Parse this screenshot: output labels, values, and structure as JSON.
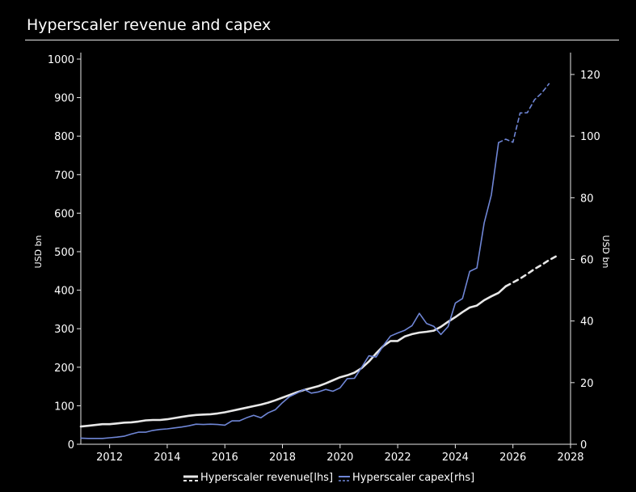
{
  "page": {
    "title": "Hyperscaler revenue and capex"
  },
  "chart_data": {
    "type": "line",
    "title": "Hyperscaler revenue and capex",
    "xlim": [
      2011,
      2028
    ],
    "x_ticks": [
      "2012",
      "2014",
      "2016",
      "2018",
      "2020",
      "2022",
      "2024",
      "2026",
      "2028"
    ],
    "y_left": {
      "label": "USD bn",
      "lim": [
        0,
        1000
      ],
      "ticks": [
        "0",
        "100",
        "200",
        "300",
        "400",
        "500",
        "600",
        "700",
        "800",
        "900",
        "1000"
      ]
    },
    "y_right": {
      "label": "USD bn",
      "lim": [
        0,
        125
      ],
      "ticks": [
        "0",
        "20",
        "40",
        "60",
        "80",
        "100",
        "120"
      ]
    },
    "legend_position": "bottom-center",
    "series": [
      {
        "name": "Hyperscaler revenue[lhs]",
        "axis": "left",
        "color": "#e8e8e8",
        "style": "solid",
        "points": [
          [
            2011.0,
            46
          ],
          [
            2011.25,
            48
          ],
          [
            2011.5,
            50
          ],
          [
            2011.75,
            52
          ],
          [
            2012.0,
            52
          ],
          [
            2012.25,
            54
          ],
          [
            2012.5,
            56
          ],
          [
            2012.75,
            57
          ],
          [
            2013.0,
            59
          ],
          [
            2013.25,
            62
          ],
          [
            2013.5,
            63
          ],
          [
            2013.75,
            63
          ],
          [
            2014.0,
            65
          ],
          [
            2014.25,
            68
          ],
          [
            2014.5,
            71
          ],
          [
            2014.75,
            74
          ],
          [
            2015.0,
            76
          ],
          [
            2015.25,
            77
          ],
          [
            2015.5,
            78
          ],
          [
            2015.75,
            80
          ],
          [
            2016.0,
            83
          ],
          [
            2016.25,
            87
          ],
          [
            2016.5,
            91
          ],
          [
            2016.75,
            95
          ],
          [
            2017.0,
            99
          ],
          [
            2017.25,
            103
          ],
          [
            2017.5,
            108
          ],
          [
            2017.75,
            114
          ],
          [
            2018.0,
            121
          ],
          [
            2018.25,
            128
          ],
          [
            2018.5,
            135
          ],
          [
            2018.75,
            141
          ],
          [
            2019.0,
            146
          ],
          [
            2019.25,
            151
          ],
          [
            2019.5,
            158
          ],
          [
            2019.75,
            166
          ],
          [
            2020.0,
            174
          ],
          [
            2020.25,
            179
          ],
          [
            2020.5,
            186
          ],
          [
            2020.75,
            198
          ],
          [
            2021.0,
            215
          ],
          [
            2021.25,
            236
          ],
          [
            2021.5,
            255
          ],
          [
            2021.75,
            268
          ],
          [
            2022.0,
            268
          ],
          [
            2022.25,
            280
          ],
          [
            2022.5,
            286
          ],
          [
            2022.75,
            290
          ],
          [
            2023.0,
            292
          ],
          [
            2023.25,
            295
          ],
          [
            2023.5,
            305
          ],
          [
            2023.75,
            318
          ],
          [
            2024.0,
            330
          ],
          [
            2024.25,
            343
          ],
          [
            2024.5,
            355
          ],
          [
            2024.75,
            360
          ],
          [
            2025.0,
            374
          ],
          [
            2025.25,
            384
          ],
          [
            2025.5,
            393
          ],
          [
            2025.75,
            410
          ]
        ]
      },
      {
        "name": "Hyperscaler revenue[lhs] forecast",
        "axis": "left",
        "color": "#e8e8e8",
        "style": "dashed",
        "points": [
          [
            2025.75,
            410
          ],
          [
            2026.0,
            420
          ],
          [
            2026.25,
            430
          ],
          [
            2026.5,
            442
          ],
          [
            2026.75,
            455
          ],
          [
            2027.0,
            466
          ],
          [
            2027.25,
            478
          ],
          [
            2027.5,
            488
          ]
        ]
      },
      {
        "name": "Hyperscaler capex[rhs]",
        "axis": "right",
        "color": "#6f86d6",
        "style": "solid",
        "points": [
          [
            2011.0,
            2.0
          ],
          [
            2011.25,
            1.9
          ],
          [
            2011.5,
            1.9
          ],
          [
            2011.75,
            1.9
          ],
          [
            2012.0,
            2.1
          ],
          [
            2012.25,
            2.3
          ],
          [
            2012.5,
            2.6
          ],
          [
            2012.75,
            3.3
          ],
          [
            2013.0,
            3.9
          ],
          [
            2013.25,
            3.9
          ],
          [
            2013.5,
            4.5
          ],
          [
            2013.75,
            4.8
          ],
          [
            2014.0,
            5.0
          ],
          [
            2014.25,
            5.3
          ],
          [
            2014.5,
            5.6
          ],
          [
            2014.75,
            6.0
          ],
          [
            2015.0,
            6.5
          ],
          [
            2015.25,
            6.4
          ],
          [
            2015.5,
            6.5
          ],
          [
            2015.75,
            6.4
          ],
          [
            2016.0,
            6.2
          ],
          [
            2016.25,
            7.6
          ],
          [
            2016.5,
            7.6
          ],
          [
            2016.75,
            8.6
          ],
          [
            2017.0,
            9.4
          ],
          [
            2017.25,
            8.6
          ],
          [
            2017.5,
            10.2
          ],
          [
            2017.75,
            11.2
          ],
          [
            2018.0,
            13.5
          ],
          [
            2018.25,
            15.5
          ],
          [
            2018.5,
            16.6
          ],
          [
            2018.75,
            17.8
          ],
          [
            2019.0,
            16.6
          ],
          [
            2019.25,
            17.0
          ],
          [
            2019.5,
            17.8
          ],
          [
            2019.75,
            17.2
          ],
          [
            2020.0,
            18.3
          ],
          [
            2020.25,
            21.3
          ],
          [
            2020.5,
            21.4
          ],
          [
            2020.75,
            25.0
          ],
          [
            2021.0,
            28.7
          ],
          [
            2021.25,
            28.3
          ],
          [
            2021.5,
            32.0
          ],
          [
            2021.75,
            35.1
          ],
          [
            2022.0,
            36.1
          ],
          [
            2022.25,
            37.0
          ],
          [
            2022.5,
            38.5
          ],
          [
            2022.75,
            42.5
          ],
          [
            2023.0,
            39.2
          ],
          [
            2023.25,
            38.3
          ],
          [
            2023.5,
            35.6
          ],
          [
            2023.75,
            38.2
          ],
          [
            2024.0,
            45.8
          ],
          [
            2024.25,
            47.3
          ],
          [
            2024.5,
            56.1
          ],
          [
            2024.75,
            57.2
          ],
          [
            2025.0,
            71.8
          ],
          [
            2025.25,
            80.9
          ],
          [
            2025.5,
            97.9
          ]
        ]
      },
      {
        "name": "Hyperscaler capex[rhs] forecast",
        "axis": "right",
        "color": "#6f86d6",
        "style": "dashed",
        "points": [
          [
            2025.5,
            97.9
          ],
          [
            2025.75,
            99.0
          ],
          [
            2026.0,
            98.0
          ],
          [
            2026.25,
            107.5
          ],
          [
            2026.5,
            107.6
          ],
          [
            2026.75,
            111.8
          ],
          [
            2027.0,
            114.0
          ],
          [
            2027.25,
            117.0
          ]
        ]
      }
    ],
    "legend": [
      {
        "label": "Hyperscaler revenue[lhs]",
        "color": "#e8e8e8"
      },
      {
        "label": "Hyperscaler capex[rhs]",
        "color": "#6f86d6"
      }
    ]
  }
}
